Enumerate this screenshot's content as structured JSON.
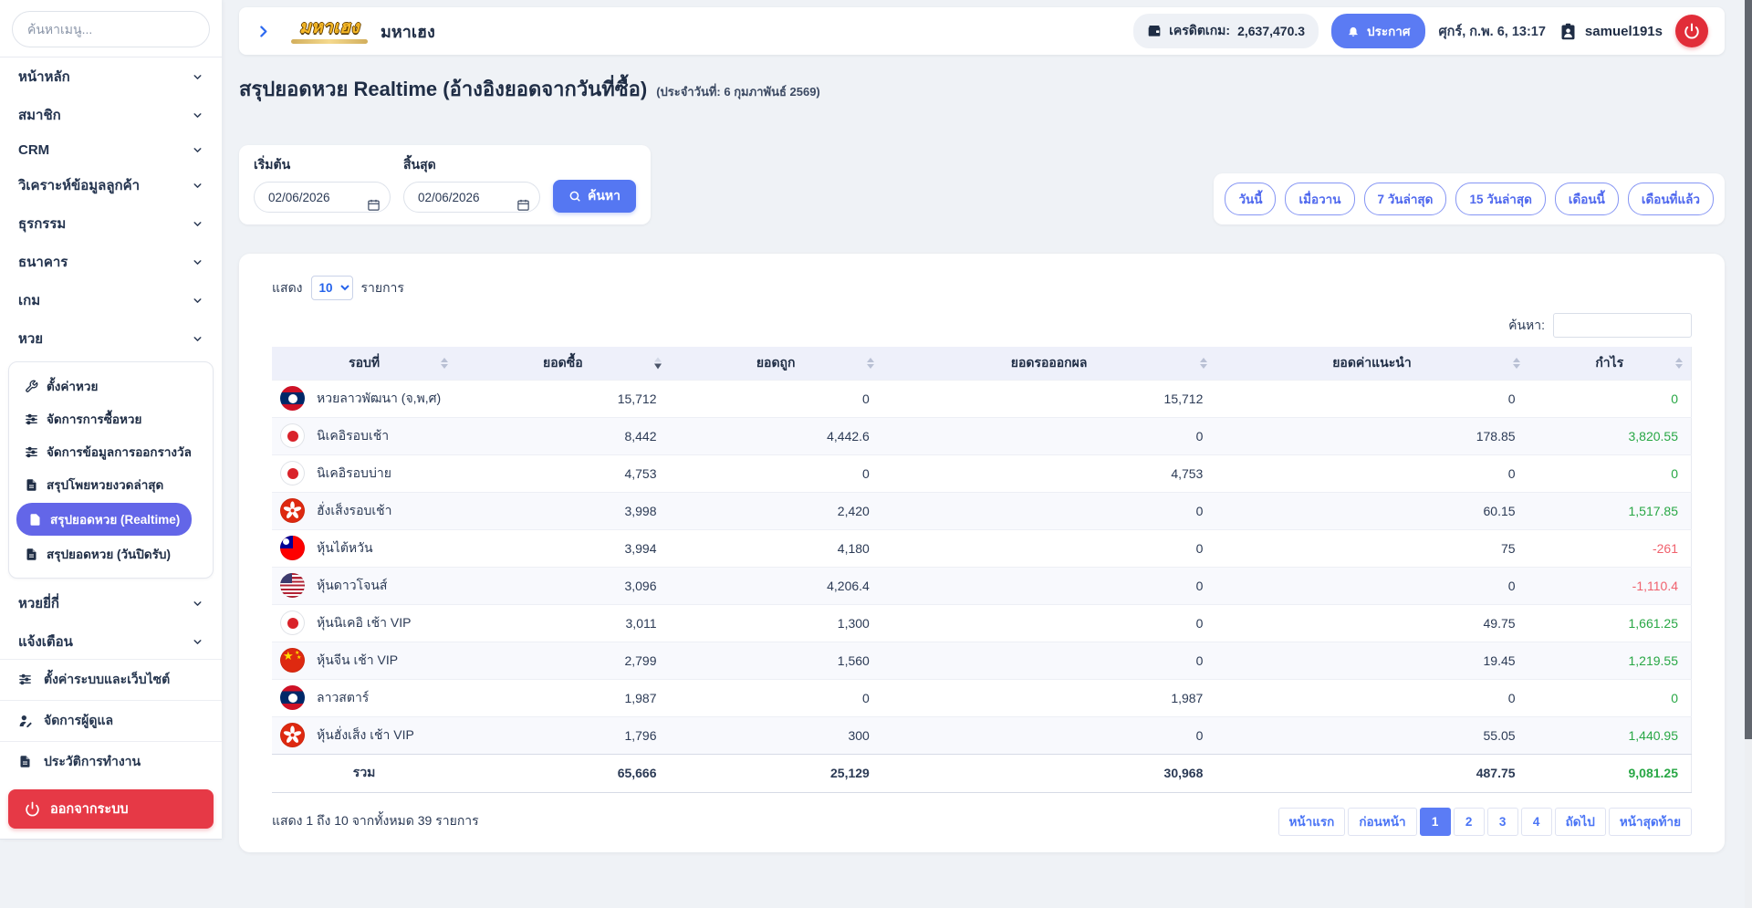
{
  "colors": {
    "accent": "#5b7bf3",
    "active_menu": "#6366e8",
    "danger": "#e63946",
    "profit_green": "#28a745",
    "loss_red": "#f0616d"
  },
  "sidebar": {
    "search_placeholder": "ค้นหาเมนู...",
    "items_top": [
      "หน้าหลัก",
      "สมาชิก",
      "CRM",
      "วิเคราะห์ข้อมูลลูกค้า",
      "ธุรกรรม",
      "ธนาคาร",
      "เกม"
    ],
    "expanded_item": "หวย",
    "submenu": [
      {
        "label": "ตั้งค่าหวย",
        "icon": "wrench",
        "active": false
      },
      {
        "label": "จัดการการซื้อหวย",
        "icon": "sliders",
        "active": false
      },
      {
        "label": "จัดการข้อมูลการออกรางวัล",
        "icon": "sliders",
        "active": false
      },
      {
        "label": "สรุปโพยหวยงวดล่าสุด",
        "icon": "doc",
        "active": false
      },
      {
        "label": "สรุปยอดหวย (Realtime)",
        "icon": "doc",
        "active": true
      },
      {
        "label": "สรุปยอดหวย (วันปิดรับ)",
        "icon": "doc",
        "active": false
      }
    ],
    "items_after": [
      "หวยยี่กี่",
      "แจ้งเตือน"
    ],
    "bottom_items": [
      {
        "label": "ตั้งค่าระบบและเว็บไซต์",
        "icon": "sliders"
      },
      {
        "label": "จัดการผู้ดูแล",
        "icon": "user"
      },
      {
        "label": "ประวัติการทำงาน",
        "icon": "doc"
      }
    ],
    "logout_label": "ออกจากระบบ"
  },
  "header": {
    "logo_text": "มหาเฮง",
    "brand": "มหาเฮง",
    "credit_label": "เครดิตเกม:",
    "credit_value": "2,637,470.3",
    "announce_label": "ประกาศ",
    "datetime": "ศุกร์, ก.พ. 6, 13:17",
    "username": "samuel191s"
  },
  "page": {
    "title": "สรุปยอดหวย Realtime (อ้างอิงยอดจากวันที่ซื้อ)",
    "subtitle": "(ประจำวันที่: 6 กุมภาพันธ์ 2569)"
  },
  "filters": {
    "start_label": "เริ่มต้น",
    "end_label": "สิ้นสุด",
    "start_value": "02/06/2026",
    "end_value": "02/06/2026",
    "search_button": "ค้นหา",
    "quick": [
      "วันนี้",
      "เมื่อวาน",
      "7 วันล่าสุด",
      "15 วันล่าสุด",
      "เดือนนี้",
      "เดือนที่แล้ว"
    ]
  },
  "table": {
    "show_label": "แสดง",
    "show_value": "10",
    "entries_label": "รายการ",
    "search_label": "ค้นหา:",
    "columns": [
      "รอบที่",
      "ยอดซื้อ",
      "ยอดถูก",
      "ยอดรอออกผล",
      "ยอดค่าแนะนำ",
      "กำไร"
    ],
    "sorted_column": 1,
    "rows": [
      {
        "name": "หวยลาวพัฒนา (จ,พ,ศ)",
        "flag": "laos",
        "buy": "15,712",
        "won": "0",
        "pending": "15,712",
        "commission": "0",
        "profit": "0",
        "negative": false
      },
      {
        "name": "นิเคอิรอบเช้า",
        "flag": "japan",
        "buy": "8,442",
        "won": "4,442.6",
        "pending": "0",
        "commission": "178.85",
        "profit": "3,820.55",
        "negative": false
      },
      {
        "name": "นิเคอิรอบบ่าย",
        "flag": "japan",
        "buy": "4,753",
        "won": "0",
        "pending": "4,753",
        "commission": "0",
        "profit": "0",
        "negative": false
      },
      {
        "name": "ฮั่งเส็งรอบเช้า",
        "flag": "hongkong",
        "buy": "3,998",
        "won": "2,420",
        "pending": "0",
        "commission": "60.15",
        "profit": "1,517.85",
        "negative": false
      },
      {
        "name": "หุ้นไต้หวัน",
        "flag": "taiwan",
        "buy": "3,994",
        "won": "4,180",
        "pending": "0",
        "commission": "75",
        "profit": "-261",
        "negative": true
      },
      {
        "name": "หุ้นดาวโจนส์",
        "flag": "usa",
        "buy": "3,096",
        "won": "4,206.4",
        "pending": "0",
        "commission": "0",
        "profit": "-1,110.4",
        "negative": true
      },
      {
        "name": "หุ้นนิเคอิ เช้า VIP",
        "flag": "japan",
        "buy": "3,011",
        "won": "1,300",
        "pending": "0",
        "commission": "49.75",
        "profit": "1,661.25",
        "negative": false
      },
      {
        "name": "หุ้นจีน เช้า VIP",
        "flag": "china",
        "buy": "2,799",
        "won": "1,560",
        "pending": "0",
        "commission": "19.45",
        "profit": "1,219.55",
        "negative": false
      },
      {
        "name": "ลาวสตาร์",
        "flag": "laos",
        "buy": "1,987",
        "won": "0",
        "pending": "1,987",
        "commission": "0",
        "profit": "0",
        "negative": false
      },
      {
        "name": "หุ้นฮั่งเส็ง เช้า VIP",
        "flag": "hongkong",
        "buy": "1,796",
        "won": "300",
        "pending": "0",
        "commission": "55.05",
        "profit": "1,440.95",
        "negative": false
      }
    ],
    "total": {
      "label": "รวม",
      "buy": "65,666",
      "won": "25,129",
      "pending": "30,968",
      "commission": "487.75",
      "profit": "9,081.25"
    },
    "footer_info": "แสดง 1 ถึง 10 จากทั้งหมด 39 รายการ",
    "pagination": {
      "first": "หน้าแรก",
      "prev": "ก่อนหน้า",
      "pages": [
        "1",
        "2",
        "3",
        "4"
      ],
      "active": "1",
      "next": "ถัดไป",
      "last": "หน้าสุดท้าย"
    }
  }
}
